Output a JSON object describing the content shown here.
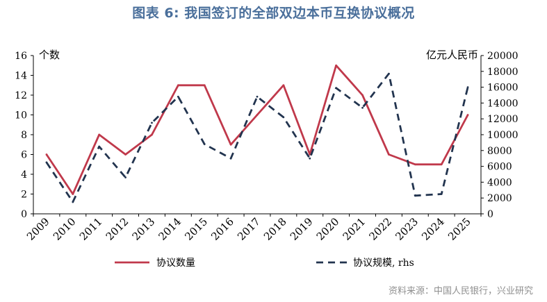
{
  "title": "图表 6:  我国签订的全部双边本币互换协议概况",
  "source": "资料来源：中国人民银行，兴业研究",
  "chart_data": {
    "type": "line",
    "categories": [
      "2009",
      "2010",
      "2011",
      "2012",
      "2013",
      "2014",
      "2015",
      "2016",
      "2017",
      "2018",
      "2019",
      "2020",
      "2021",
      "2022",
      "2023",
      "2024",
      "2025"
    ],
    "left_axis": {
      "label": "个数",
      "ticks": [
        0,
        2,
        4,
        6,
        8,
        10,
        12,
        14,
        16
      ],
      "ylim": [
        0,
        16
      ]
    },
    "right_axis": {
      "label": "亿元人民币",
      "ticks": [
        0,
        2000,
        4000,
        6000,
        8000,
        10000,
        12000,
        14000,
        16000,
        18000,
        20000
      ],
      "ylim": [
        0,
        20000
      ]
    },
    "series": [
      {
        "name": "协议数量",
        "axis": "left",
        "style": "solid",
        "color": "#c0394b",
        "values": [
          6,
          2,
          8,
          6,
          8,
          13,
          13,
          7,
          10,
          13,
          6,
          15,
          12,
          6,
          5,
          5,
          10
        ]
      },
      {
        "name": "协议规模, rhs",
        "axis": "right",
        "style": "dashed",
        "color": "#22344f",
        "values": [
          6500,
          1500,
          8500,
          4600,
          11500,
          14800,
          8800,
          7000,
          14800,
          12200,
          7000,
          15900,
          13400,
          17700,
          2300,
          2500,
          16000
        ]
      }
    ],
    "grid": false,
    "legend_position": "bottom"
  }
}
